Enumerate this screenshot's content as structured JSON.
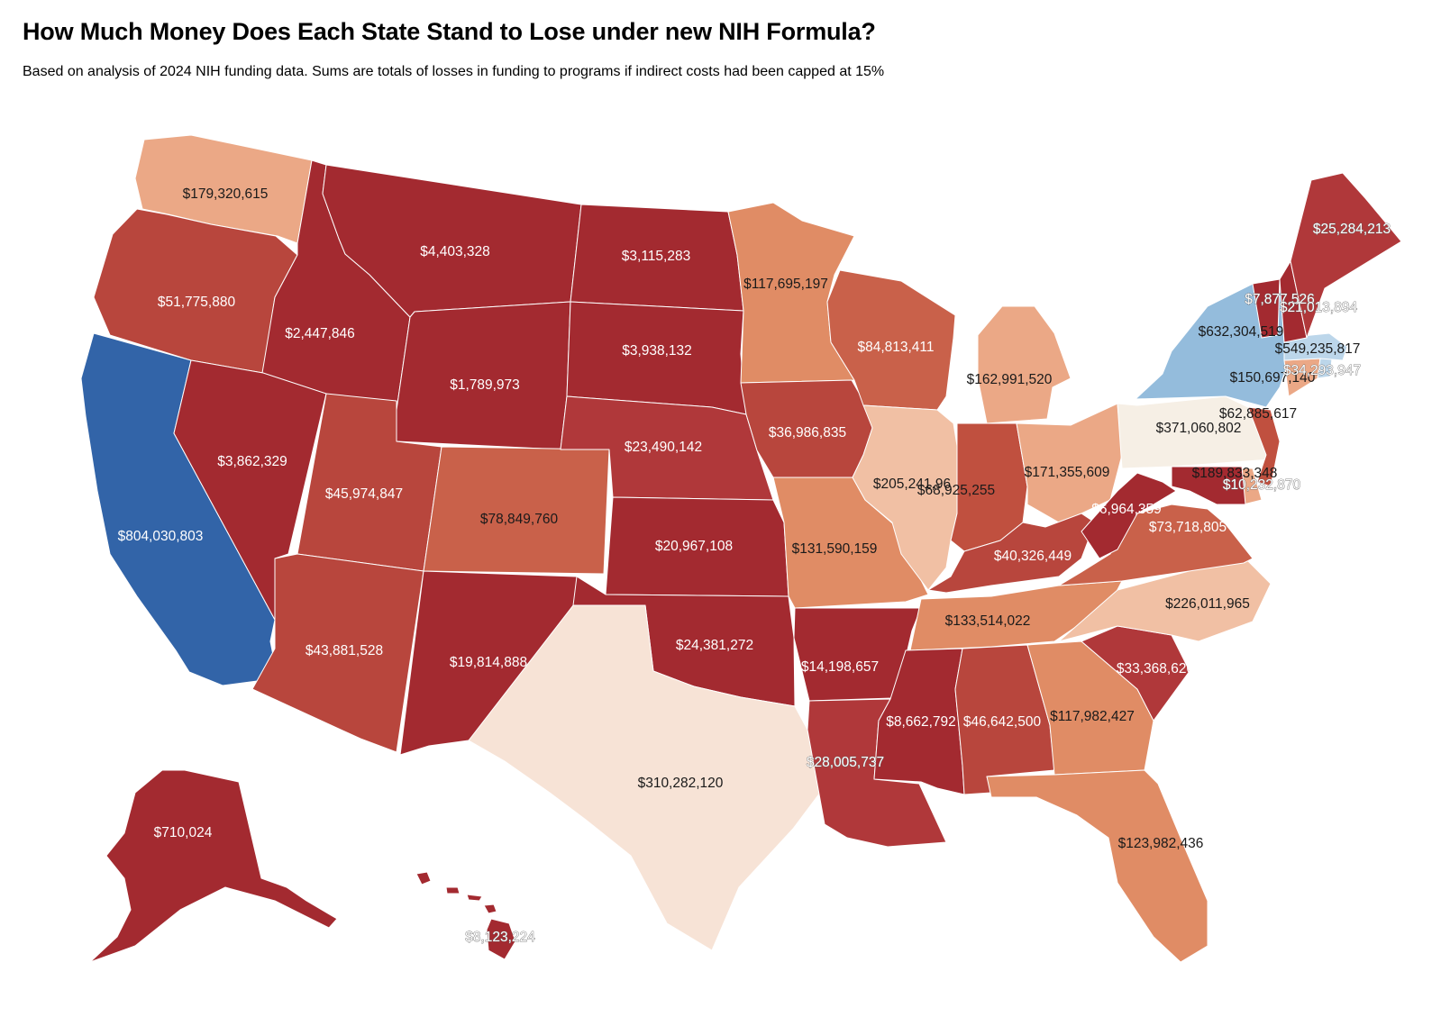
{
  "title": "How Much Money Does Each State Stand to Lose under new NIH Formula?",
  "subtitle": "Based on analysis of 2024 NIH funding data. Sums are totals of losses in funding to programs if indirect costs had been capped at 15%",
  "palette": {
    "dark_red": "#a32a30",
    "red": "#b8463d",
    "red_orange": "#c9614a",
    "orange": "#e08c65",
    "salmon": "#eba886",
    "light_salmon": "#f1c0a4",
    "peach": "#f7e3d6",
    "cream": "#f6efe5",
    "light_blue": "#94bcdc",
    "pale_blue": "#bcd6ea",
    "blue": "#3264a8"
  },
  "states": [
    {
      "id": "WA",
      "value": "$179,320,615",
      "fill": "#eba886"
    },
    {
      "id": "OR",
      "value": "$51,775,880",
      "fill": "#b8463d"
    },
    {
      "id": "CA",
      "value": "$804,030,803",
      "fill": "#3264a8"
    },
    {
      "id": "ID",
      "value": "$2,447,846",
      "fill": "#a32a30"
    },
    {
      "id": "NV",
      "value": "$3,862,329",
      "fill": "#a32a30"
    },
    {
      "id": "MT",
      "value": "$4,403,328",
      "fill": "#a32a30"
    },
    {
      "id": "WY",
      "value": "$1,789,973",
      "fill": "#a32a30"
    },
    {
      "id": "UT",
      "value": "$45,974,847",
      "fill": "#b8463d"
    },
    {
      "id": "AZ",
      "value": "$43,881,528",
      "fill": "#b8463d"
    },
    {
      "id": "CO",
      "value": "$78,849,760",
      "fill": "#c9614a"
    },
    {
      "id": "NM",
      "value": "$19,814,888",
      "fill": "#a32a30"
    },
    {
      "id": "ND",
      "value": "$3,115,283",
      "fill": "#a32a30"
    },
    {
      "id": "SD",
      "value": "$3,938,132",
      "fill": "#a32a30"
    },
    {
      "id": "NE",
      "value": "$23,490,142",
      "fill": "#b0383a"
    },
    {
      "id": "KS",
      "value": "$20,967,108",
      "fill": "#a32a30"
    },
    {
      "id": "OK",
      "value": "$24,381,272",
      "fill": "#a32a30"
    },
    {
      "id": "TX",
      "value": "$310,282,120",
      "fill": "#f7e3d6"
    },
    {
      "id": "MN",
      "value": "$117,695,197",
      "fill": "#e08c65"
    },
    {
      "id": "IA",
      "value": "$36,986,835",
      "fill": "#b8463d"
    },
    {
      "id": "MO",
      "value": "$131,590,159",
      "fill": "#e08c65"
    },
    {
      "id": "AR",
      "value": "$14,198,657",
      "fill": "#a32a30"
    },
    {
      "id": "LA",
      "value": "$28,005,737",
      "fill": "#b0383a"
    },
    {
      "id": "WI",
      "value": "$84,813,411",
      "fill": "#c9614a"
    },
    {
      "id": "IL",
      "value": "$205,241,96",
      "fill": "#f1c0a4"
    },
    {
      "id": "MI",
      "value": "$162,991,520",
      "fill": "#eba886"
    },
    {
      "id": "IN",
      "value": "$68,925,255",
      "fill": "#c0503f"
    },
    {
      "id": "OH",
      "value": "$171,355,609",
      "fill": "#eba886"
    },
    {
      "id": "KY",
      "value": "$40,326,449",
      "fill": "#b8463d"
    },
    {
      "id": "TN",
      "value": "$133,514,022",
      "fill": "#e08c65"
    },
    {
      "id": "MS",
      "value": "$8,662,792",
      "fill": "#a32a30"
    },
    {
      "id": "AL",
      "value": "$46,642,500",
      "fill": "#b8463d"
    },
    {
      "id": "GA",
      "value": "$117,982,427",
      "fill": "#e08c65"
    },
    {
      "id": "FL",
      "value": "$123,982,436",
      "fill": "#e08c65"
    },
    {
      "id": "SC",
      "value": "$33,368,620",
      "fill": "#b0383a"
    },
    {
      "id": "NC",
      "value": "$226,011,965",
      "fill": "#f1c0a4"
    },
    {
      "id": "VA",
      "value": "$73,718,805",
      "fill": "#c9614a"
    },
    {
      "id": "WV",
      "value": "$6,964,359",
      "fill": "#a32a30"
    },
    {
      "id": "PA",
      "value": "$371,060,802",
      "fill": "#f6efe5"
    },
    {
      "id": "NY",
      "value": "$632,304,519",
      "fill": "#94bcdc"
    },
    {
      "id": "NJ",
      "value": "$62,885,617",
      "fill": "#c0503f"
    },
    {
      "id": "DE",
      "value": "$189,833,348",
      "fill": "#eba886"
    },
    {
      "id": "MD",
      "value": "$10,232,870",
      "fill": "#a32a30"
    },
    {
      "id": "CT",
      "value": "$150,697,140",
      "fill": "#eba886"
    },
    {
      "id": "RI",
      "value": "$34,293,947",
      "fill": "#bcd6ea"
    },
    {
      "id": "MA",
      "value": "$549,235,817",
      "fill": "#bcd6ea"
    },
    {
      "id": "VT",
      "value": "$7,877,526",
      "fill": "#a32a30"
    },
    {
      "id": "NH",
      "value": "$21,013,894",
      "fill": "#a32a30"
    },
    {
      "id": "ME",
      "value": "$25,284,213",
      "fill": "#b0383a"
    },
    {
      "id": "AK",
      "value": "$710,024",
      "fill": "#a32a30"
    },
    {
      "id": "HI",
      "value": "$8,123,224",
      "fill": "#a32a30"
    }
  ]
}
